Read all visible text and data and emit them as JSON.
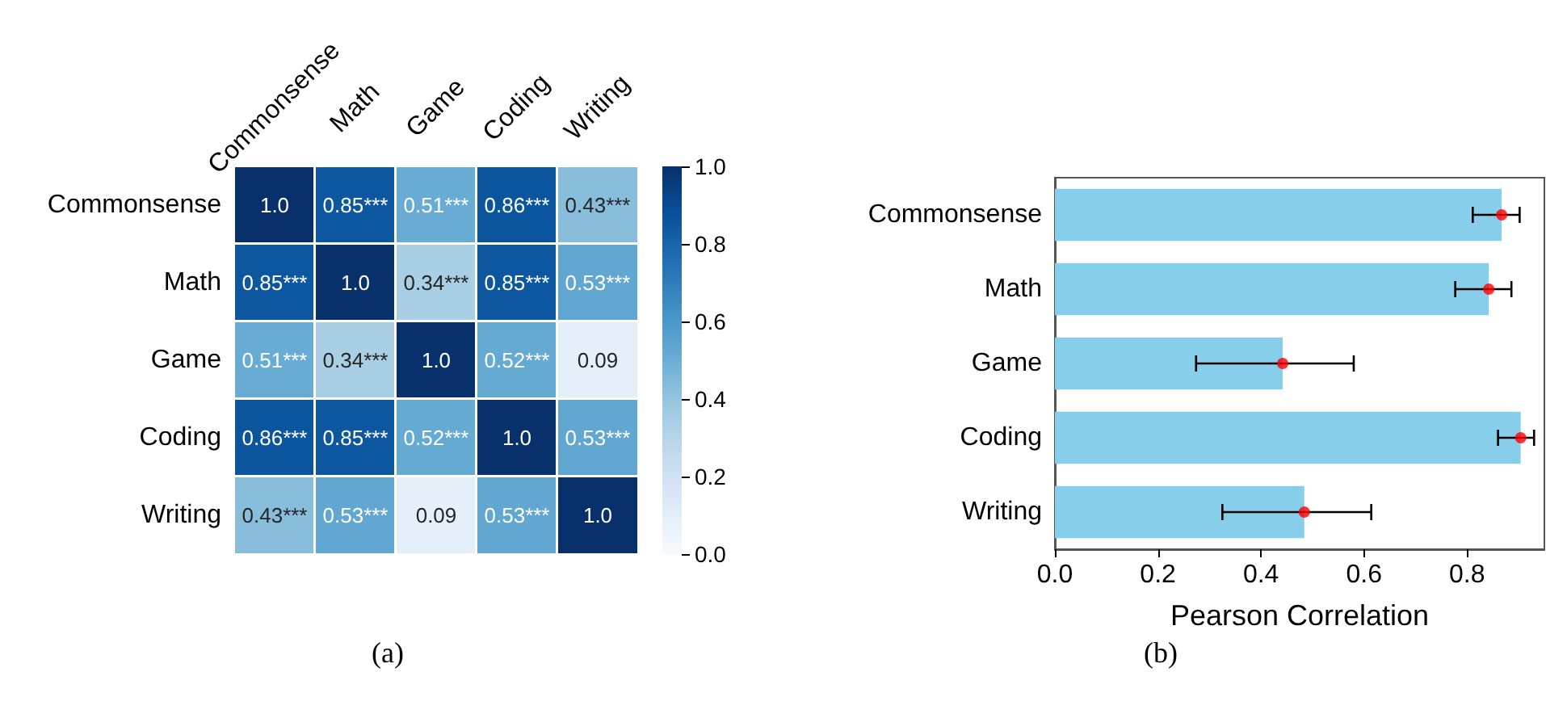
{
  "chart_data": [
    {
      "type": "heatmap",
      "categories": [
        "Commonsense",
        "Math",
        "Game",
        "Coding",
        "Writing"
      ],
      "y_categories": [
        "Commonsense",
        "Math",
        "Game",
        "Coding",
        "Writing"
      ],
      "cells": [
        [
          1.0,
          0.85,
          0.51,
          0.86,
          0.43
        ],
        [
          0.85,
          1.0,
          0.34,
          0.85,
          0.53
        ],
        [
          0.51,
          0.34,
          1.0,
          0.52,
          0.09
        ],
        [
          0.86,
          0.85,
          0.52,
          1.0,
          0.53
        ],
        [
          0.43,
          0.53,
          0.09,
          0.53,
          1.0
        ]
      ],
      "cell_labels": [
        [
          "1.0",
          "0.85***",
          "0.51***",
          "0.86***",
          "0.43***"
        ],
        [
          "0.85***",
          "1.0",
          "0.34***",
          "0.85***",
          "0.53***"
        ],
        [
          "0.51***",
          "0.34***",
          "1.0",
          "0.52***",
          "0.09"
        ],
        [
          "0.86***",
          "0.85***",
          "0.52***",
          "1.0",
          "0.53***"
        ],
        [
          "0.43***",
          "0.53***",
          "0.09",
          "0.53***",
          "1.0"
        ]
      ],
      "clim": [
        0,
        1
      ],
      "cticks": [
        {
          "value": 0,
          "label": "0.0"
        },
        0.2,
        0.4,
        0.6,
        0.8,
        {
          "value": 1,
          "label": "1.0"
        }
      ],
      "annotations": [
        "(a)"
      ]
    },
    {
      "type": "bar",
      "orientation": "horizontal",
      "categories": [
        "Commonsense",
        "Math",
        "Game",
        "Coding",
        "Writing"
      ],
      "series": [
        {
          "type": "bar",
          "color": "#87ceeb",
          "values": [
            0.867,
            0.842,
            0.442,
            0.904,
            0.484
          ]
        },
        {
          "type": "scatter",
          "color": "#ff0000",
          "values": [
            0.867,
            0.842,
            0.442,
            0.904,
            0.484
          ],
          "errors": [
            [
              0.811,
              0.902
            ],
            [
              0.777,
              0.886
            ],
            [
              0.274,
              0.58
            ],
            [
              0.86,
              0.93
            ],
            [
              0.325,
              0.614
            ]
          ]
        }
      ],
      "marker": "circle",
      "xlabel": "Pearson Correlation",
      "xlim": [
        0,
        0.95
      ],
      "xticks": [
        {
          "value": 0,
          "label": "0.0"
        },
        0.2,
        0.4,
        0.6,
        0.8
      ],
      "grid": false,
      "annotations": [
        "(b)"
      ]
    }
  ]
}
